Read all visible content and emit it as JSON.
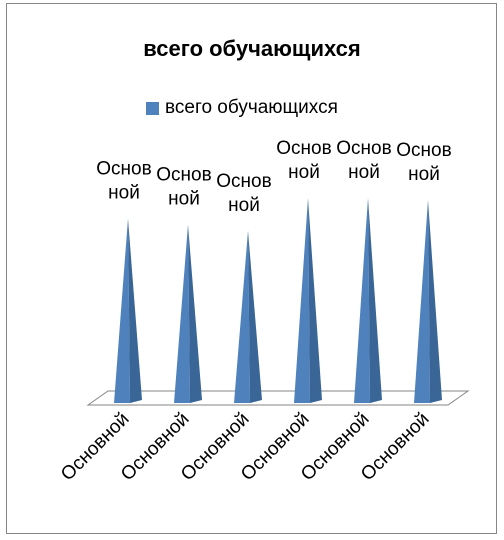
{
  "chart_data": {
    "type": "bar",
    "subtype": "3d-pyramid",
    "title": "всего обучающихся",
    "categories": [
      "Основной",
      "Основной",
      "Основной",
      "Основной",
      "Основной",
      "Основной"
    ],
    "series": [
      {
        "name": "всего обучающихся",
        "color": "#4F81BD",
        "values": [
          0.9,
          0.87,
          0.84,
          1.0,
          1.0,
          0.99
        ],
        "data_labels": [
          "Основной",
          "Основной",
          "Основной",
          "Основной",
          "Основной",
          "Основной"
        ]
      }
    ],
    "legend_position": "top",
    "grid": false,
    "category_label_rotation": "diagonal"
  }
}
